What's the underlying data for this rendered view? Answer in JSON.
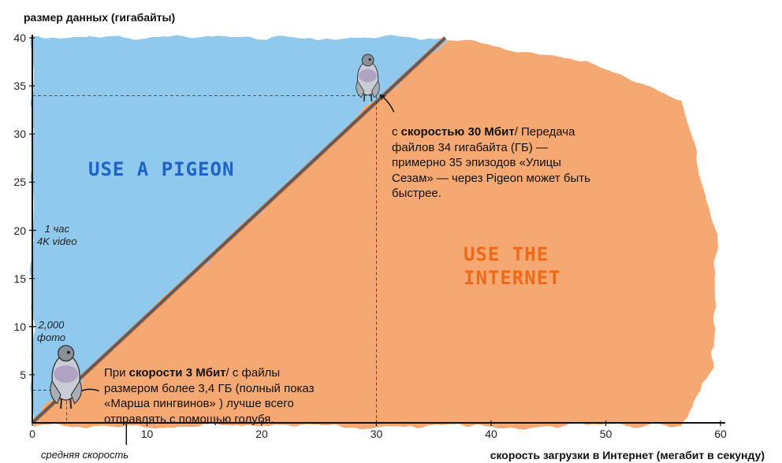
{
  "chart_data": {
    "type": "area",
    "title": "",
    "ylabel": "размер данных (гигабайты)",
    "xlabel": "скорость загрузки в Интернет (мегабит в секунду)",
    "x_sublabel": "средняя скорость",
    "xlim": [
      0,
      60
    ],
    "ylim": [
      0,
      40
    ],
    "x_ticks": [
      "0",
      "10",
      "20",
      "30",
      "40",
      "50",
      "60"
    ],
    "y_ticks": [
      "5",
      "10",
      "15",
      "20",
      "25",
      "30",
      "35",
      "40"
    ],
    "series": [
      {
        "x": [
          0,
          36
        ],
        "y": [
          0,
          40
        ]
      }
    ],
    "regions": [
      {
        "label": "USE A PIGEON",
        "color": "#7cc0ea"
      },
      {
        "label_lines": [
          "USE THE",
          "INTERNET"
        ],
        "color": "#f59a5a"
      }
    ],
    "y_markers": [
      {
        "y": 20,
        "lines": [
          "1 час",
          "4K video"
        ]
      },
      {
        "y": 10,
        "lines": [
          "2,000",
          "фото"
        ]
      }
    ],
    "reference_points": [
      {
        "x": 30,
        "y": 34
      },
      {
        "x": 3,
        "y": 3.4
      }
    ],
    "annotations": {
      "top": {
        "prefix": "с ",
        "bold": "скоростью 30 Мбит",
        "suffix": "/ Передача файлов 34 гигабайта (ГБ) — примерно 35 эпизодов «Улицы Сезам» — через Pigeon может быть быстрее."
      },
      "bottom": {
        "prefix": "При ",
        "bold": "скорости 3 Мбит",
        "suffix": "/ с файлы размером более 3,4 ГБ (полный показ «Марша пингвинов» ) лучше всего отправлять с помощью голубя."
      }
    },
    "colors": {
      "pigeon_area": "#7cc0ea",
      "internet_area": "#f59a5a",
      "boundary": "#3a5d78",
      "boundary_edge": "#c0602a"
    },
    "grid": false
  }
}
